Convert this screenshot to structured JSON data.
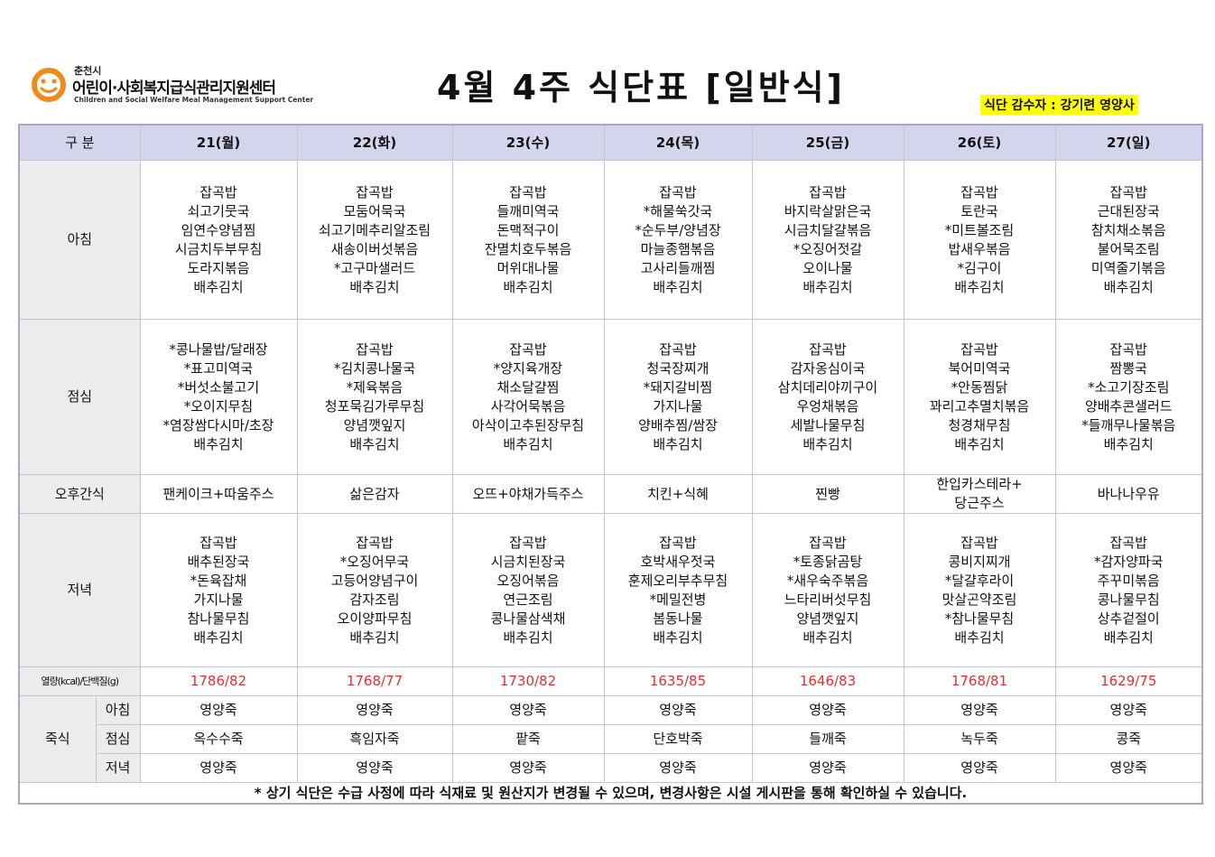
{
  "logo": {
    "city": "춘천시",
    "name": "어린이·사회복지급식관리지원센터",
    "english": "Children and Social Welfare Meal Management Support Center"
  },
  "title": "4월  4주  식단표  [일반식]",
  "supervisor": "식단 감수자 : 강기련 영양사",
  "header": {
    "category": "구   분",
    "days": [
      "21(월)",
      "22(화)",
      "23(수)",
      "24(목)",
      "25(금)",
      "26(토)",
      "27(일)"
    ]
  },
  "rows": {
    "breakfast": {
      "label": "아침",
      "days": [
        [
          "잡곡밥",
          "쇠고기뭇국",
          "임연수양념찜",
          "시금치두부무침",
          "도라지볶음",
          "배추김치"
        ],
        [
          "잡곡밥",
          "모둠어묵국",
          "쇠고기메추리알조림",
          "새송이버섯볶음",
          "*고구마샐러드",
          "배추김치"
        ],
        [
          "잡곡밥",
          "들깨미역국",
          "돈맥적구이",
          "잔멸치호두볶음",
          "머위대나물",
          "배추김치"
        ],
        [
          "잡곡밥",
          "*해물쑥갓국",
          "*순두부/양념장",
          "마늘종햄볶음",
          "고사리들깨찜",
          "배추김치"
        ],
        [
          "잡곡밥",
          "바지락살맑은국",
          "시금치달걀볶음",
          "*오징어젓갈",
          "오이나물",
          "배추김치"
        ],
        [
          "잡곡밥",
          "토란국",
          "*미트볼조림",
          "밥새우볶음",
          "*김구이",
          "배추김치"
        ],
        [
          "잡곡밥",
          "근대된장국",
          "참치채소볶음",
          "불어묵조림",
          "미역줄기볶음",
          "배추김치"
        ]
      ]
    },
    "lunch": {
      "label": "점심",
      "days": [
        [
          "*콩나물밥/달래장",
          "*표고미역국",
          "*버섯소불고기",
          "*오이지무침",
          "*염장쌈다시마/초장",
          "배추김치"
        ],
        [
          "잡곡밥",
          "*김치콩나물국",
          "*제육볶음",
          "청포묵김가루무침",
          "양념깻잎지",
          "배추김치"
        ],
        [
          "잡곡밥",
          "*양지육개장",
          "채소달걀찜",
          "사각어묵볶음",
          "아삭이고추된장무침",
          "배추김치"
        ],
        [
          "잡곡밥",
          "청국장찌개",
          "*돼지갈비찜",
          "가지나물",
          "양배추찜/쌈장",
          "배추김치"
        ],
        [
          "잡곡밥",
          "감자옹심이국",
          "삼치데리야끼구이",
          "우엉채볶음",
          "세발나물무침",
          "배추김치"
        ],
        [
          "잡곡밥",
          "북어미역국",
          "*안동찜닭",
          "꽈리고추멸치볶음",
          "청경채무침",
          "배추김치"
        ],
        [
          "잡곡밥",
          "짬뽕국",
          "*소고기장조림",
          "양배추콘샐러드",
          "*들깨무나물볶음",
          "배추김치"
        ]
      ]
    },
    "snack": {
      "label": "오후간식",
      "days": [
        [
          "팬케이크+따움주스"
        ],
        [
          "삶은감자"
        ],
        [
          "오뜨+야채가득주스"
        ],
        [
          "치킨+식혜"
        ],
        [
          "찐빵"
        ],
        [
          "한입카스테라+",
          "당근주스"
        ],
        [
          "바나나우유"
        ]
      ]
    },
    "dinner": {
      "label": "저녁",
      "days": [
        [
          "잡곡밥",
          "배추된장국",
          "*돈육잡채",
          "가지나물",
          "참나물무침",
          "배추김치"
        ],
        [
          "잡곡밥",
          "*오징어무국",
          "고등어양념구이",
          "감자조림",
          "오이양파무침",
          "배추김치"
        ],
        [
          "잡곡밥",
          "시금치된장국",
          "오징어볶음",
          "연근조림",
          "콩나물삼색채",
          "배추김치"
        ],
        [
          "잡곡밥",
          "호박새우젓국",
          "훈제오리부추무침",
          "*메밀전병",
          "봄동나물",
          "배추김치"
        ],
        [
          "잡곡밥",
          "*토종닭곰탕",
          "*새우숙주볶음",
          "느타리버섯무침",
          "양념깻잎지",
          "배추김치"
        ],
        [
          "잡곡밥",
          "콩비지찌개",
          "*달걀후라이",
          "맛살곤약조림",
          "*참나물무침",
          "배추김치"
        ],
        [
          "잡곡밥",
          "*감자양파국",
          "주꾸미볶음",
          "콩나물무침",
          "상추겉절이",
          "배추김치"
        ]
      ]
    },
    "nutrition": {
      "label": "열량(kcal)/단백질(g)",
      "values": [
        "1786/82",
        "1768/77",
        "1730/82",
        "1635/85",
        "1646/83",
        "1768/81",
        "1629/75"
      ]
    },
    "porridge": {
      "label": "죽식",
      "breakfast": {
        "label": "아침",
        "days": [
          "영양죽",
          "영양죽",
          "영양죽",
          "영양죽",
          "영양죽",
          "영양죽",
          "영양죽"
        ]
      },
      "lunch": {
        "label": "점심",
        "days": [
          "옥수수죽",
          "흑임자죽",
          "팥죽",
          "단호박죽",
          "들깨죽",
          "녹두죽",
          "콩죽"
        ]
      },
      "dinner": {
        "label": "저녁",
        "days": [
          "영양죽",
          "영양죽",
          "영양죽",
          "영양죽",
          "영양죽",
          "영양죽",
          "영양죽"
        ]
      }
    }
  },
  "footnote": "* 상기 식단은 수급 사정에 따라 식재료 및 원산지가 변경될 수 있으며, 변경사항은 시설 게시판을 통해 확인하실 수 있습니다.",
  "colors": {
    "header_bg": "#d4d4ec",
    "label_bg": "#ececec",
    "nutrition_text": "#e23030",
    "supervisor_highlight": "#ffff00",
    "logo_orange": "#f08a1c"
  }
}
